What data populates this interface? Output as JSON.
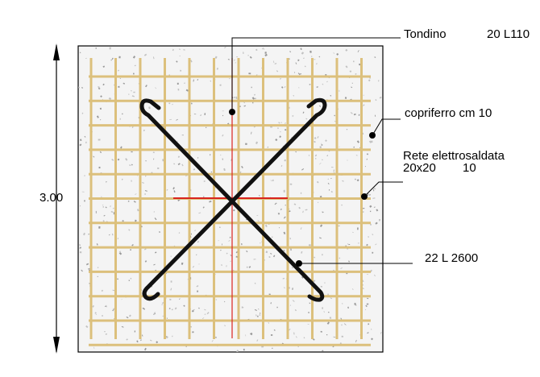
{
  "labels": {
    "dimension": "3.00",
    "tondino": "Tondino",
    "tondino_spec": "20 L110",
    "copriferro": "copriferro cm 10",
    "rete_line1": "Rete elettrosaldata",
    "rete_line2": "20x20",
    "rete_line2_b": "10",
    "bar_spec": "22 L 2600"
  },
  "colors": {
    "concrete": "#f4f4f4",
    "mesh": "#dcc07c",
    "cross_bars": "#111111",
    "red_line": "#d9241e",
    "outline": "#000000"
  }
}
